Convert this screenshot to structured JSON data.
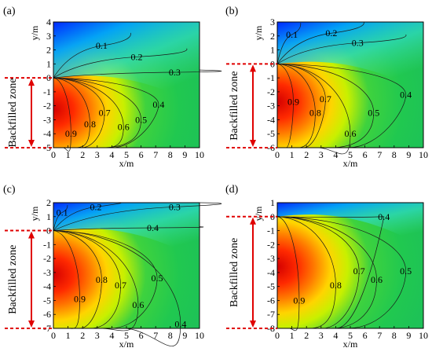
{
  "chart_data": [
    {
      "type": "heatmap",
      "panel_label": "(a)",
      "xlabel": "x/m",
      "ylabel": "y/m",
      "xlim": [
        0,
        10
      ],
      "ylim": [
        -5,
        4
      ],
      "x_ticks": [
        0,
        1,
        2,
        3,
        4,
        5,
        6,
        7,
        8,
        9,
        10
      ],
      "y_ticks": [
        4,
        3,
        2,
        1,
        0,
        -1,
        -2,
        -3,
        -4,
        -5
      ],
      "zone_label": "Backfilled zone",
      "zone_range": [
        -5,
        0
      ],
      "contours": [
        {
          "label": "0.1",
          "x": 3.3,
          "y": 2.3
        },
        {
          "label": "0.2",
          "x": 5.7,
          "y": 1.5
        },
        {
          "label": "0.3",
          "x": 8.3,
          "y": 0.4
        },
        {
          "label": "0.4",
          "x": 7.2,
          "y": -1.9
        },
        {
          "label": "0.5",
          "x": 6.0,
          "y": -3.0
        },
        {
          "label": "0.6",
          "x": 4.8,
          "y": -3.5
        },
        {
          "label": "0.7",
          "x": 3.5,
          "y": -2.5
        },
        {
          "label": "0.8",
          "x": 2.5,
          "y": -3.3
        },
        {
          "label": "0.9",
          "x": 1.2,
          "y": -4.0
        }
      ]
    },
    {
      "type": "heatmap",
      "panel_label": "(b)",
      "xlabel": "x/m",
      "ylabel": "y/m",
      "xlim": [
        0,
        10
      ],
      "ylim": [
        -6,
        3
      ],
      "x_ticks": [
        0,
        1,
        2,
        3,
        4,
        5,
        6,
        7,
        8,
        9,
        10
      ],
      "y_ticks": [
        3,
        2,
        1,
        0,
        -1,
        -2,
        -3,
        -4,
        -5,
        -6
      ],
      "zone_label": "Backfilled zone",
      "zone_range": [
        -6,
        0
      ],
      "contours": [
        {
          "label": "0.1",
          "x": 1.0,
          "y": 2.1
        },
        {
          "label": "0.2",
          "x": 3.7,
          "y": 2.2
        },
        {
          "label": "0.3",
          "x": 5.5,
          "y": 1.5
        },
        {
          "label": "0.4",
          "x": 8.8,
          "y": -2.2
        },
        {
          "label": "0.5",
          "x": 6.6,
          "y": -3.5
        },
        {
          "label": "0.6",
          "x": 5.0,
          "y": -5.0
        },
        {
          "label": "0.7",
          "x": 3.3,
          "y": -2.5
        },
        {
          "label": "0.8",
          "x": 2.6,
          "y": -3.5
        },
        {
          "label": "0.9",
          "x": 1.1,
          "y": -2.7
        }
      ]
    },
    {
      "type": "heatmap",
      "panel_label": "(c)",
      "xlabel": "x/m",
      "ylabel": "y/m",
      "xlim": [
        0,
        10
      ],
      "ylim": [
        -7,
        2
      ],
      "x_ticks": [
        0,
        1,
        2,
        3,
        4,
        5,
        6,
        7,
        8,
        9,
        10
      ],
      "y_ticks": [
        2,
        1,
        0,
        -1,
        -2,
        -3,
        -4,
        -5,
        -6,
        -7
      ],
      "zone_label": "Backfilled zone",
      "zone_range": [
        -7,
        0
      ],
      "contours": [
        {
          "label": "0.1",
          "x": 0.6,
          "y": 1.3
        },
        {
          "label": "0.2",
          "x": 2.9,
          "y": 1.7
        },
        {
          "label": "0.3",
          "x": 8.3,
          "y": 1.7
        },
        {
          "label": "0.4",
          "x": 6.8,
          "y": 0.2
        },
        {
          "label": "0.4",
          "x": 8.7,
          "y": -6.7
        },
        {
          "label": "0.5",
          "x": 7.1,
          "y": -3.4
        },
        {
          "label": "0.6",
          "x": 5.8,
          "y": -5.3
        },
        {
          "label": "0.7",
          "x": 4.6,
          "y": -3.9
        },
        {
          "label": "0.8",
          "x": 3.3,
          "y": -3.5
        },
        {
          "label": "0.9",
          "x": 1.8,
          "y": -4.9
        }
      ]
    },
    {
      "type": "heatmap",
      "panel_label": "(d)",
      "xlabel": "x/m",
      "ylabel": "y/m",
      "xlim": [
        0,
        10
      ],
      "ylim": [
        -8,
        1
      ],
      "x_ticks": [
        0,
        1,
        2,
        3,
        4,
        5,
        6,
        7,
        8,
        9,
        10
      ],
      "y_ticks": [
        1,
        0,
        -1,
        -2,
        -3,
        -4,
        -5,
        -6,
        -7,
        -8
      ],
      "zone_label": "Backfilled zone",
      "zone_range": [
        -8,
        0
      ],
      "contours": [
        {
          "label": "0.4",
          "x": 7.3,
          "y": 0.0
        },
        {
          "label": "0.5",
          "x": 8.8,
          "y": -3.9
        },
        {
          "label": "0.6",
          "x": 6.8,
          "y": -4.5
        },
        {
          "label": "0.7",
          "x": 5.6,
          "y": -3.9
        },
        {
          "label": "0.8",
          "x": 4.0,
          "y": -4.9
        },
        {
          "label": "0.9",
          "x": 1.5,
          "y": -6.0
        }
      ]
    }
  ]
}
